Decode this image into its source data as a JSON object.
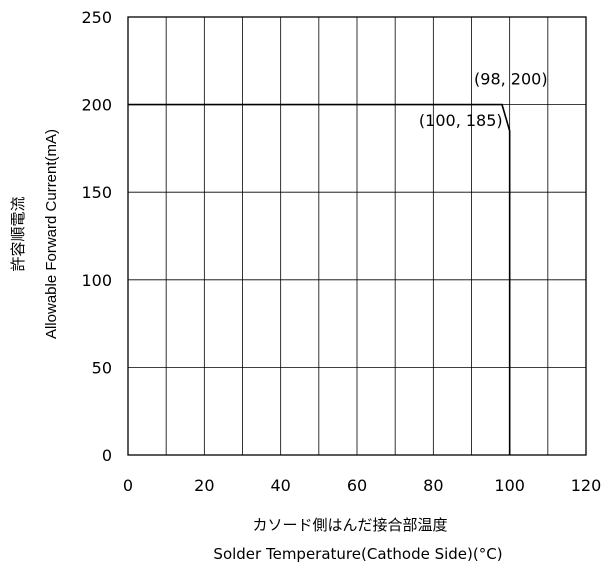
{
  "chart_data": {
    "type": "line",
    "title": "",
    "xlabel_jp": "カソード側はんだ接合部温度",
    "xlabel_en": "Solder Temperature(Cathode Side)(°C)",
    "ylabel_jp": "許容順電流",
    "ylabel_en": "Allowable Forward Current(mA)",
    "xlim": [
      0,
      120
    ],
    "ylim": [
      0,
      250
    ],
    "x_ticks": [
      0,
      20,
      40,
      60,
      80,
      100,
      120
    ],
    "x_tick_labels": [
      "0",
      "20",
      "40",
      "60",
      "80",
      "100",
      "120"
    ],
    "y_ticks": [
      0,
      50,
      100,
      150,
      200,
      250
    ],
    "y_tick_labels": [
      "0",
      "50",
      "100",
      "150",
      "200",
      "250"
    ],
    "x_grid_step": 10,
    "y_grid_step": 50,
    "grid": true,
    "legend": "none",
    "line_color": "#000000",
    "series": [
      {
        "x": [
          0,
          98,
          100,
          100
        ],
        "y": [
          200,
          200,
          185,
          0
        ]
      }
    ],
    "annotations": [
      {
        "text": "(98, 200)",
        "x": 98,
        "y": 200
      },
      {
        "text": "(100, 185)",
        "x": 100,
        "y": 185
      }
    ]
  }
}
